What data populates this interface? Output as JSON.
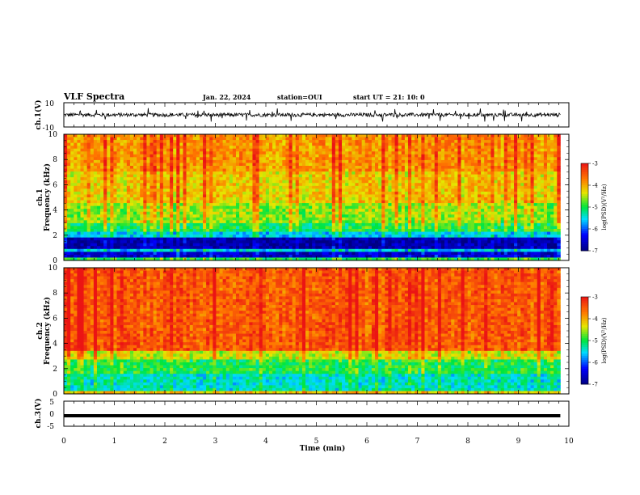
{
  "header": {
    "title": "VLF Spectra",
    "date": "Jan. 22, 2024",
    "station": "station=OUI",
    "start_ut": "start UT =  21: 10: 0"
  },
  "chart_data": [
    {
      "type": "line",
      "panel": "ch1-waveform",
      "ylabel": "ch.1(V)",
      "ylim": [
        -10,
        10
      ],
      "ytick_labels": [
        "10",
        "-10"
      ],
      "baseline_value": 0,
      "trace_color": "#000000",
      "description_values": {
        "typical_amplitude_V": 1.5,
        "spike_amplitude_V": 4
      }
    },
    {
      "type": "heatmap",
      "panel": "ch1-spectrogram",
      "ylabel_top": "ch.1",
      "ylabel": "Frequency (kHz)",
      "ylim": [
        0,
        10
      ],
      "ytick_labels": [
        "0",
        "2",
        "4",
        "6",
        "8",
        "10"
      ],
      "xlim": [
        0,
        10
      ],
      "data_extent_min": 9.83,
      "colorbar": {
        "label": "log(PSD)(V²/Hz)",
        "range": [
          -7,
          -3
        ],
        "tick_labels": [
          "-3",
          "-4",
          "-5",
          "-6",
          "-7"
        ]
      },
      "bands": [
        {
          "fmin": 0.0,
          "fmax": 0.3,
          "level": -5.0
        },
        {
          "fmin": 0.3,
          "fmax": 0.7,
          "level": -6.6
        },
        {
          "fmin": 0.7,
          "fmax": 1.0,
          "level": -5.6
        },
        {
          "fmin": 1.0,
          "fmax": 1.8,
          "level": -6.8
        },
        {
          "fmin": 1.8,
          "fmax": 2.2,
          "level": -5.6
        },
        {
          "fmin": 2.2,
          "fmax": 3.0,
          "level": -5.0
        },
        {
          "fmin": 3.0,
          "fmax": 4.5,
          "level": -4.6
        },
        {
          "fmin": 4.5,
          "fmax": 7.0,
          "level": -4.2
        },
        {
          "fmin": 7.0,
          "fmax": 10.0,
          "level": -3.9
        }
      ]
    },
    {
      "type": "heatmap",
      "panel": "ch2-spectrogram",
      "ylabel_top": "ch.2",
      "ylabel": "Frequency (kHz)",
      "ylim": [
        0,
        10
      ],
      "ytick_labels": [
        "0",
        "2",
        "4",
        "6",
        "8",
        "10"
      ],
      "xlim": [
        0,
        10
      ],
      "data_extent_min": 9.83,
      "colorbar": {
        "label": "log(PSD)(V²/Hz)",
        "range": [
          -7,
          -3
        ],
        "tick_labels": [
          "-3",
          "-4",
          "-5",
          "-6",
          "-7"
        ]
      },
      "bands": [
        {
          "fmin": 0.0,
          "fmax": 0.3,
          "level": -4.2
        },
        {
          "fmin": 0.3,
          "fmax": 1.5,
          "level": -5.4
        },
        {
          "fmin": 1.5,
          "fmax": 2.8,
          "level": -5.0
        },
        {
          "fmin": 2.8,
          "fmax": 3.3,
          "level": -4.4
        },
        {
          "fmin": 3.3,
          "fmax": 10.0,
          "level": -3.5
        }
      ]
    },
    {
      "type": "line",
      "panel": "ch3-waveform",
      "ylabel": "ch.3(V)",
      "ylim": [
        -5,
        5
      ],
      "ytick_labels": [
        "5",
        "0",
        "-5"
      ],
      "baseline_value": -0.8,
      "trace_color": "#000000"
    }
  ],
  "xaxis": {
    "label": "Time (min)",
    "xlim": [
      0,
      10
    ],
    "tick_labels": [
      "0",
      "1",
      "2",
      "3",
      "4",
      "5",
      "6",
      "7",
      "8",
      "9",
      "10"
    ]
  }
}
